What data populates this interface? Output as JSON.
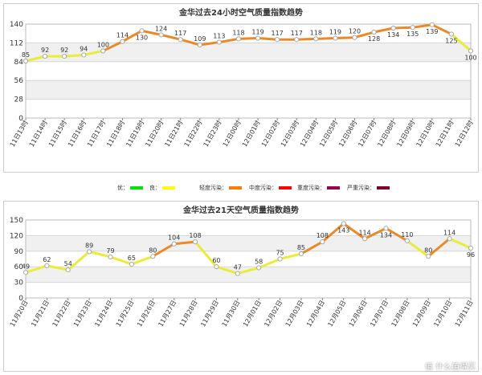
{
  "chart_data": [
    {
      "type": "line",
      "title": "金华过去24小时空气质量指数趋势",
      "ylim": [
        0,
        140
      ],
      "yticks": [
        0,
        28,
        56,
        84,
        112,
        140
      ],
      "grid": true,
      "x": [
        "11日13时",
        "11日14时",
        "11日15时",
        "11日16时",
        "11日17时",
        "11日18时",
        "11日19时",
        "11日20时",
        "11日21时",
        "11日22时",
        "11日23时",
        "12日00时",
        "12日01时",
        "12日02时",
        "12日03时",
        "12日04时",
        "12日05时",
        "12日06时",
        "12日07时",
        "12日08时",
        "12日09时",
        "12日10时",
        "12日11时",
        "12日12时"
      ],
      "values": [
        85,
        92,
        92,
        94,
        100,
        114,
        130,
        124,
        117,
        109,
        113,
        118,
        119,
        117,
        117,
        118,
        119,
        120,
        128,
        134,
        135,
        139,
        125,
        100
      ]
    },
    {
      "type": "line",
      "title": "金华过去21天空气质量指数趋势",
      "ylim": [
        0,
        150
      ],
      "yticks": [
        0,
        30,
        60,
        90,
        120,
        150
      ],
      "grid": true,
      "x": [
        "11月20日",
        "11月21日",
        "11月22日",
        "11月23日",
        "11月24日",
        "11月25日",
        "11月26日",
        "11月27日",
        "11月28日",
        "11月29日",
        "11月30日",
        "12月01日",
        "12月02日",
        "12月03日",
        "12月04日",
        "12月05日",
        "12月06日",
        "12月07日",
        "12月08日",
        "12月09日",
        "12月10日",
        "12月11日"
      ],
      "values": [
        49,
        62,
        54,
        89,
        79,
        65,
        80,
        104,
        108,
        60,
        47,
        58,
        75,
        85,
        108,
        143,
        114,
        134,
        110,
        80,
        114,
        96
      ]
    }
  ],
  "legend": [
    {
      "label": "优：",
      "color": "#00e400"
    },
    {
      "label": "良：",
      "color": "#ffff00"
    },
    {
      "label": "轻度污染：",
      "color": "#ff7e00"
    },
    {
      "label": "中度污染：",
      "color": "#ff0000"
    },
    {
      "label": "重度污染：",
      "color": "#99004c"
    },
    {
      "label": "严重污染：",
      "color": "#7e0023"
    }
  ],
  "aqi_level_colors": {
    "green": "#4ccd3c",
    "yellow": "#e9ec3a",
    "orange": "#e98a2a"
  },
  "watermark": "值 什么值得买"
}
